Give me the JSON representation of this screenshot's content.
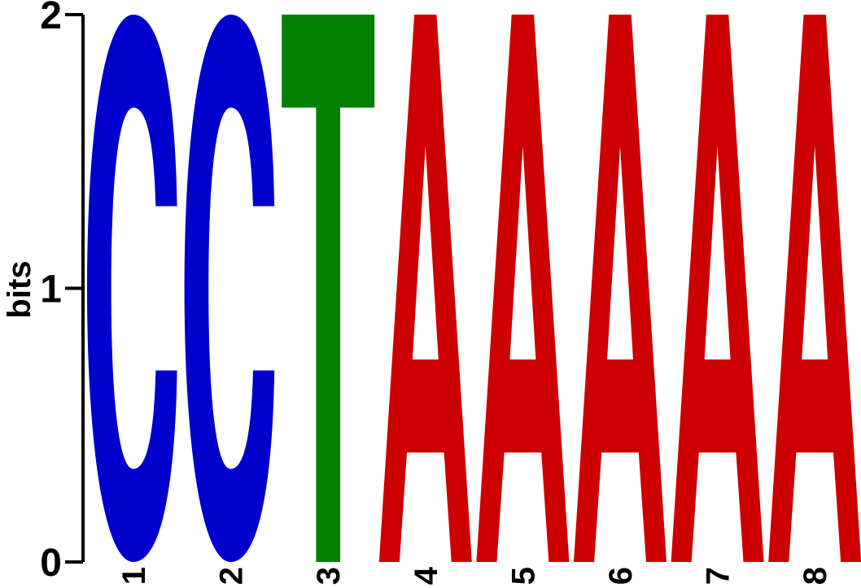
{
  "chart_data": {
    "type": "sequence-logo",
    "ylabel": "bits",
    "ylim": [
      0,
      2
    ],
    "yticks": [
      "0",
      "1",
      "2"
    ],
    "positions": [
      "1",
      "2",
      "3",
      "4",
      "5",
      "6",
      "7",
      "8"
    ],
    "letters": [
      {
        "position": "1",
        "letter": "C",
        "bits": 2.0,
        "color": "#0000CC"
      },
      {
        "position": "2",
        "letter": "C",
        "bits": 2.0,
        "color": "#0000CC"
      },
      {
        "position": "3",
        "letter": "T",
        "bits": 2.0,
        "color": "#008000"
      },
      {
        "position": "4",
        "letter": "A",
        "bits": 2.0,
        "color": "#CC0000"
      },
      {
        "position": "5",
        "letter": "A",
        "bits": 2.0,
        "color": "#CC0000"
      },
      {
        "position": "6",
        "letter": "A",
        "bits": 2.0,
        "color": "#CC0000"
      },
      {
        "position": "7",
        "letter": "A",
        "bits": 2.0,
        "color": "#CC0000"
      },
      {
        "position": "8",
        "letter": "A",
        "bits": 2.0,
        "color": "#CC0000"
      }
    ]
  }
}
